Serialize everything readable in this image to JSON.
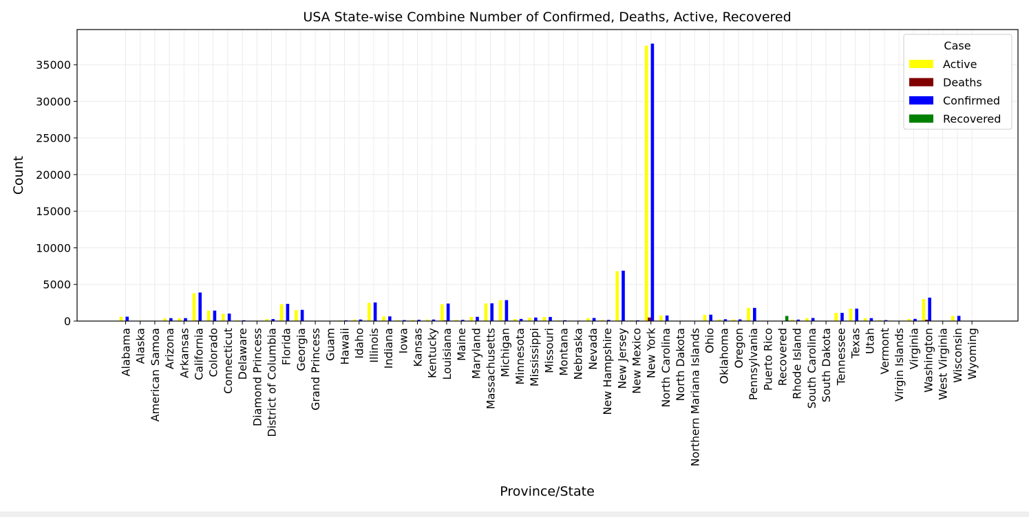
{
  "chart_data": {
    "type": "bar",
    "title": "USA State-wise Combine Number of Confirmed, Deaths, Active, Recovered",
    "xlabel": "Province/State",
    "ylabel": "Count",
    "ylim": [
      0,
      39800
    ],
    "yticks": [
      0,
      5000,
      10000,
      15000,
      20000,
      25000,
      30000,
      35000
    ],
    "grid": true,
    "legend": {
      "title": "Case",
      "placement": "top-right"
    },
    "categories": [
      "Alabama",
      "Alaska",
      "American Samoa",
      "Arizona",
      "Arkansas",
      "California",
      "Colorado",
      "Connecticut",
      "Delaware",
      "Diamond Princess",
      "District of Columbia",
      "Florida",
      "Georgia",
      "Grand Princess",
      "Guam",
      "Hawaii",
      "Idaho",
      "Illinois",
      "Indiana",
      "Iowa",
      "Kansas",
      "Kentucky",
      "Louisiana",
      "Maine",
      "Maryland",
      "Massachusetts",
      "Michigan",
      "Minnesota",
      "Mississippi",
      "Missouri",
      "Montana",
      "Nebraska",
      "Nevada",
      "New Hampshire",
      "New Jersey",
      "New Mexico",
      "New York",
      "North Carolina",
      "North Dakota",
      "Northern Mariana Islands",
      "Ohio",
      "Oklahoma",
      "Oregon",
      "Pennsylvania",
      "Puerto Rico",
      "Recovered",
      "Rhode Island",
      "South Carolina",
      "South Dakota",
      "Tennessee",
      "Texas",
      "Utah",
      "Vermont",
      "Virgin Islands",
      "Virginia",
      "Washington",
      "West Virginia",
      "Wisconsin",
      "Wyoming"
    ],
    "series": [
      {
        "name": "Active",
        "color": "#ffff00",
        "values": [
          580,
          30,
          0,
          350,
          380,
          3800,
          1400,
          1000,
          100,
          0,
          260,
          2300,
          1480,
          0,
          30,
          90,
          200,
          2480,
          630,
          120,
          160,
          200,
          2300,
          150,
          560,
          2400,
          2830,
          270,
          450,
          540,
          90,
          60,
          400,
          150,
          6800,
          90,
          37600,
          750,
          40,
          0,
          830,
          200,
          200,
          1800,
          30,
          0,
          190,
          400,
          40,
          1110,
          1700,
          400,
          120,
          20,
          280,
          3000,
          20,
          700,
          40
        ]
      },
      {
        "name": "Deaths",
        "color": "#800000",
        "values": [
          1,
          0,
          0,
          5,
          3,
          70,
          24,
          19,
          1,
          0,
          4,
          32,
          51,
          0,
          1,
          1,
          0,
          26,
          12,
          1,
          5,
          7,
          84,
          3,
          10,
          26,
          65,
          1,
          8,
          8,
          1,
          2,
          10,
          1,
          60,
          1,
          480,
          3,
          1,
          0,
          15,
          7,
          6,
          16,
          1,
          0,
          0,
          9,
          1,
          5,
          20,
          1,
          10,
          0,
          10,
          180,
          1,
          10,
          0
        ]
      },
      {
        "name": "Confirmed",
        "color": "#0000ff",
        "values": [
          600,
          40,
          0,
          400,
          400,
          3900,
          1430,
          1020,
          110,
          40,
          270,
          2350,
          1530,
          10,
          40,
          100,
          210,
          2540,
          640,
          130,
          170,
          210,
          2390,
          160,
          580,
          2420,
          2860,
          290,
          480,
          560,
          110,
          60,
          420,
          160,
          6880,
          100,
          37880,
          760,
          50,
          0,
          870,
          250,
          230,
          1800,
          40,
          0,
          200,
          420,
          50,
          1120,
          1700,
          400,
          130,
          20,
          300,
          3200,
          20,
          710,
          50
        ]
      },
      {
        "name": "Recovered",
        "color": "#008000",
        "values": [
          0,
          0,
          0,
          0,
          0,
          0,
          0,
          0,
          0,
          0,
          0,
          0,
          0,
          0,
          0,
          0,
          0,
          0,
          0,
          0,
          0,
          0,
          0,
          0,
          0,
          0,
          0,
          0,
          0,
          0,
          0,
          0,
          0,
          0,
          0,
          0,
          0,
          0,
          0,
          0,
          0,
          0,
          0,
          0,
          0,
          700,
          0,
          0,
          0,
          0,
          0,
          0,
          0,
          0,
          0,
          0,
          0,
          0,
          0
        ]
      }
    ]
  }
}
